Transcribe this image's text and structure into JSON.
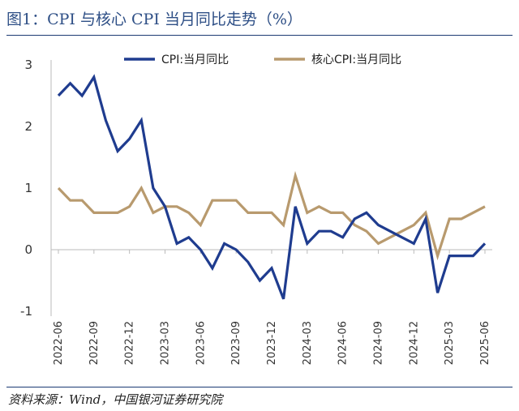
{
  "header": {
    "title": "图1：CPI 与核心 CPI 当月同比走势（%）"
  },
  "footer": {
    "source": "资料来源：Wind，中国银河证券研究院"
  },
  "colors": {
    "cpi": "#1f3c8f",
    "core": "#b89a6e",
    "axis": "#bbbbbb",
    "rule": "#1c3a73"
  },
  "chart_data": {
    "type": "line",
    "x": [
      "2022-06",
      "2022-07",
      "2022-08",
      "2022-09",
      "2022-10",
      "2022-11",
      "2022-12",
      "2023-01",
      "2023-02",
      "2023-03",
      "2023-04",
      "2023-05",
      "2023-06",
      "2023-07",
      "2023-08",
      "2023-09",
      "2023-10",
      "2023-11",
      "2023-12",
      "2024-01",
      "2024-02",
      "2024-03",
      "2024-04",
      "2024-05",
      "2024-06",
      "2024-07",
      "2024-08",
      "2024-09",
      "2024-10",
      "2024-11",
      "2024-12",
      "2025-01",
      "2025-02",
      "2025-03",
      "2025-04",
      "2025-05",
      "2025-06"
    ],
    "x_tick_labels": [
      "2022-06",
      "2022-09",
      "2022-12",
      "2023-03",
      "2023-06",
      "2023-09",
      "2023-12",
      "2024-03",
      "2024-06",
      "2024-09",
      "2024-12",
      "2025-03",
      "2025-06"
    ],
    "series": [
      {
        "name": "CPI:当月同比",
        "values": [
          2.5,
          2.7,
          2.5,
          2.8,
          2.1,
          1.6,
          1.8,
          2.1,
          1.0,
          0.7,
          0.1,
          0.2,
          0.0,
          -0.3,
          0.1,
          0.0,
          -0.2,
          -0.5,
          -0.3,
          -0.8,
          0.7,
          0.1,
          0.3,
          0.3,
          0.2,
          0.5,
          0.6,
          0.4,
          0.3,
          0.2,
          0.1,
          0.5,
          -0.7,
          -0.1,
          -0.1,
          -0.1,
          0.1
        ]
      },
      {
        "name": "核心CPI:当月同比",
        "values": [
          1.0,
          0.8,
          0.8,
          0.6,
          0.6,
          0.6,
          0.7,
          1.0,
          0.6,
          0.7,
          0.7,
          0.6,
          0.4,
          0.8,
          0.8,
          0.8,
          0.6,
          0.6,
          0.6,
          0.4,
          1.2,
          0.6,
          0.7,
          0.6,
          0.6,
          0.4,
          0.3,
          0.1,
          0.2,
          0.3,
          0.4,
          0.6,
          -0.1,
          0.5,
          0.5,
          0.6,
          0.7
        ]
      }
    ],
    "ylim": [
      -1,
      3
    ],
    "yticks": [
      -1,
      0,
      1,
      2,
      3
    ],
    "grid": false,
    "legend": "top"
  }
}
